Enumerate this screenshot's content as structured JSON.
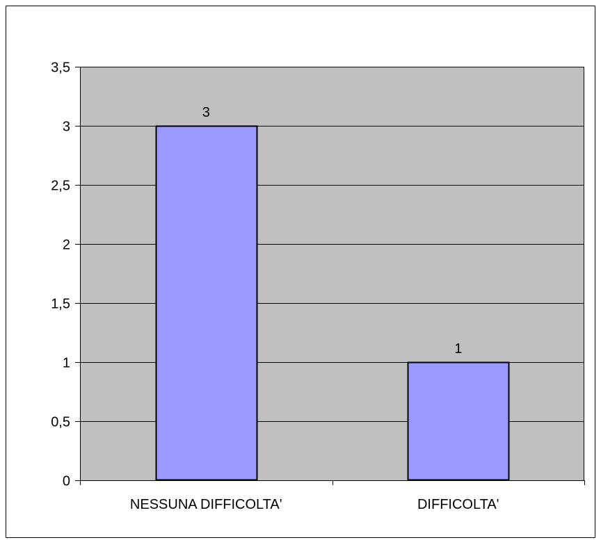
{
  "chart_data": {
    "type": "bar",
    "categories": [
      "NESSUNA DIFFICOLTA'",
      "DIFFICOLTA'"
    ],
    "values": [
      3,
      1
    ],
    "data_labels": [
      "3",
      "1"
    ],
    "title": "",
    "xlabel": "",
    "ylabel": "",
    "ylim": [
      0,
      3.5
    ],
    "yticks": [
      0,
      0.5,
      1,
      1.5,
      2,
      2.5,
      3,
      3.5
    ],
    "ytick_labels": [
      "0",
      "0,5",
      "1",
      "1,5",
      "2",
      "2,5",
      "3",
      "3,5"
    ],
    "grid": true,
    "legend": "none"
  },
  "colors": {
    "plot_background": "#c0c0c0",
    "bar_fill": "#9999ff",
    "bar_stroke": "#000000",
    "gridline": "#000000",
    "frame_border": "#000000"
  }
}
